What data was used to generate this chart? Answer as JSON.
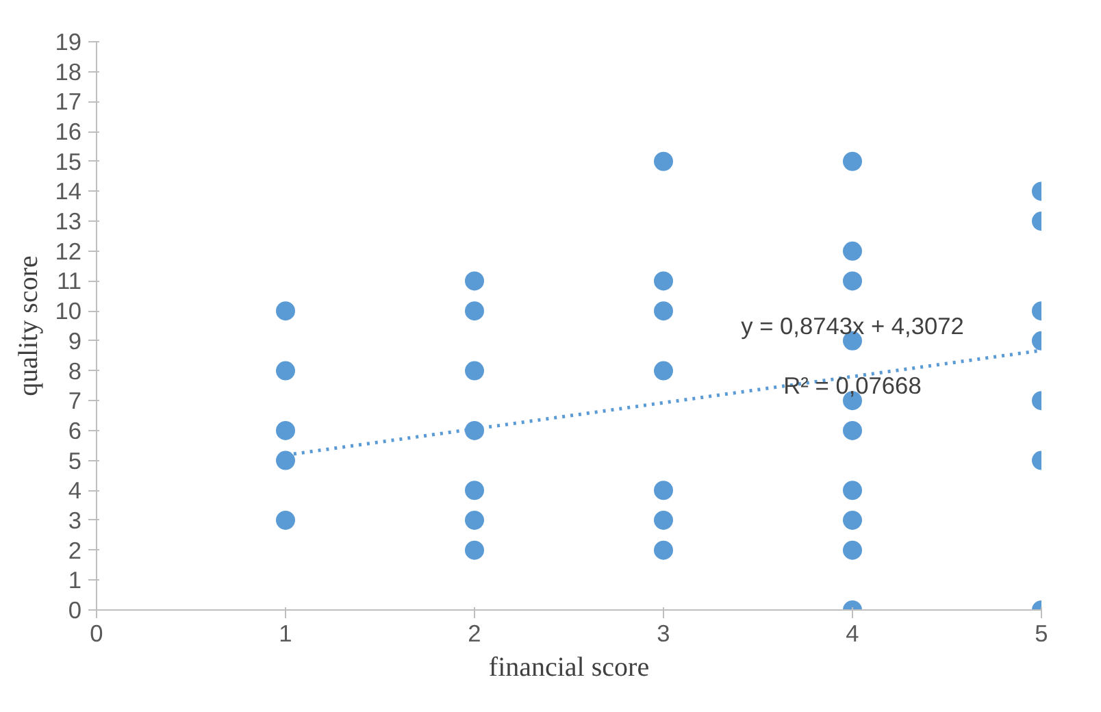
{
  "chart_data": {
    "type": "scatter",
    "xlabel": "financial score",
    "ylabel": "quality score",
    "xlim": [
      0,
      5
    ],
    "xticks": [
      0,
      1,
      2,
      3,
      4,
      5
    ],
    "ylim": [
      0,
      19
    ],
    "yticks": [
      0,
      1,
      2,
      3,
      4,
      5,
      6,
      7,
      8,
      9,
      10,
      11,
      12,
      13,
      14,
      15,
      16,
      17,
      18,
      19
    ],
    "grid": false,
    "series": [
      {
        "marker": "circle",
        "color": "#5b9bd5",
        "x": [
          1,
          1,
          1,
          1,
          1,
          2,
          2,
          2,
          2,
          2,
          2,
          2,
          3,
          3,
          3,
          3,
          3,
          3,
          3,
          4,
          4,
          4,
          4,
          4,
          4,
          4,
          4,
          4,
          4,
          5,
          5,
          5,
          5,
          5,
          5,
          5
        ],
        "values": [
          10,
          8,
          6,
          5,
          3,
          11,
          10,
          8,
          6,
          4,
          3,
          2,
          15,
          11,
          10,
          8,
          4,
          3,
          2,
          15,
          12,
          11,
          9,
          7,
          6,
          4,
          3,
          2,
          0,
          14,
          13,
          10,
          9,
          7,
          5,
          0
        ]
      },
      {
        "type": "line",
        "marker": "none",
        "line_style": "dotted",
        "color": "#5b9bd5",
        "x": [
          1,
          5
        ],
        "values": [
          5.18,
          8.68
        ]
      }
    ],
    "annotations": [
      {
        "text": "y = 0,8743x + 4,3072",
        "x": 4,
        "y": 9.5
      },
      {
        "text": "R² = 0,07668",
        "x": 4,
        "y": 7.5
      }
    ]
  }
}
